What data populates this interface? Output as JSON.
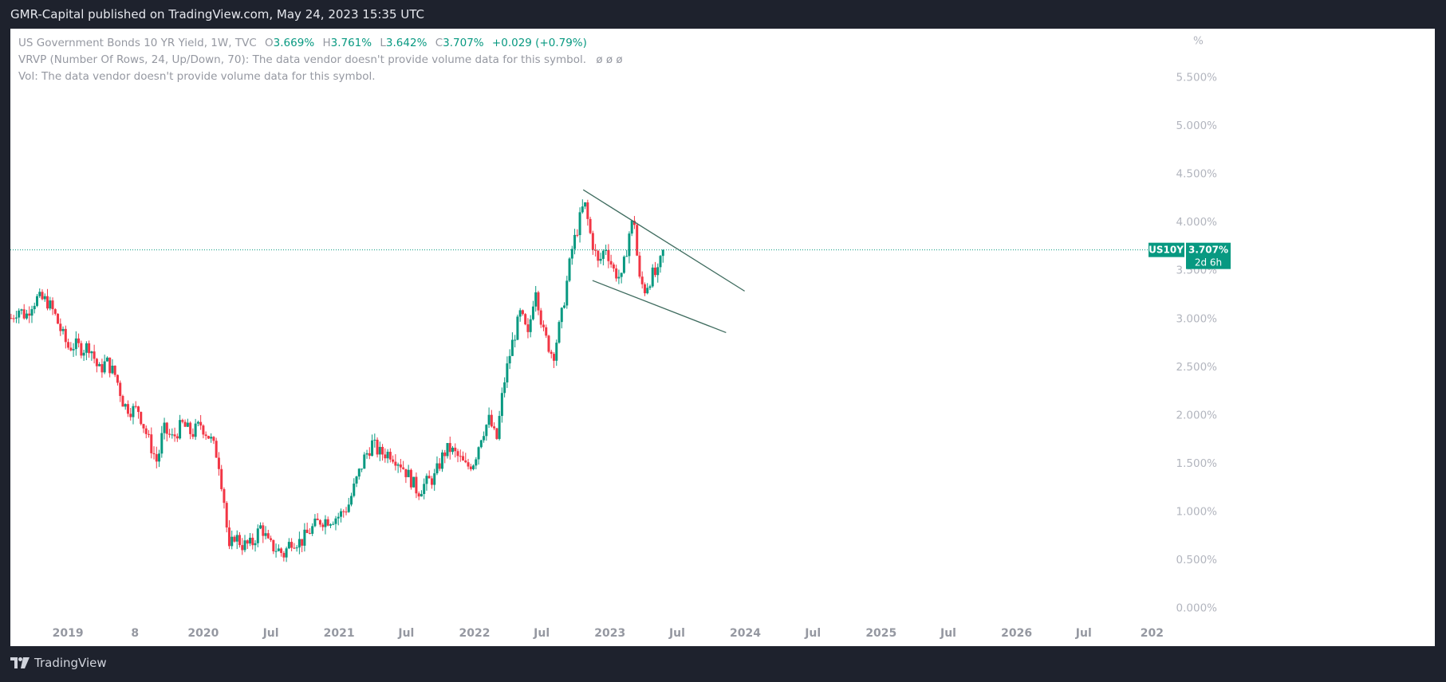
{
  "header": {
    "published": "GMR-Capital published on TradingView.com, May 24, 2023 15:35 UTC"
  },
  "legend": {
    "symbol": "US Government Bonds 10 YR Yield, 1W, TVC",
    "o_label": "O",
    "o_value": "3.669%",
    "h_label": "H",
    "h_value": "3.761%",
    "l_label": "L",
    "l_value": "3.642%",
    "c_label": "C",
    "c_value": "3.707%",
    "change": "+0.029 (+0.79%)",
    "vrvp": "VRVP (Number Of Rows, 24, Up/Down, 70): The data vendor doesn't provide volume data for this symbol.",
    "vrvp_extra": "ø  ø  ø",
    "vol": "Vol: The data vendor doesn't provide volume data for this symbol."
  },
  "badge": {
    "symbol": "US10Y",
    "price": "3.707%",
    "countdown": "2d 6h"
  },
  "footer": {
    "brand": "TradingView"
  },
  "colors": {
    "up": "#089981",
    "down": "#f23645",
    "trendline": "#3e6b5e",
    "price_line": "#089981",
    "background": "#ffffff",
    "frame": "#1e222d"
  },
  "chart_data": {
    "type": "candlestick",
    "unit": "%",
    "y_ticks": [
      "0.000%",
      "0.500%",
      "1.000%",
      "1.500%",
      "2.000%",
      "2.500%",
      "3.000%",
      "3.500%",
      "4.000%",
      "4.500%",
      "5.000%",
      "5.500%"
    ],
    "y_unit_label": "%",
    "ylim": [
      -0.4,
      6.0
    ],
    "x_ticks": [
      {
        "label": "2019",
        "x": "2019-01-01"
      },
      {
        "label": "8",
        "x": "2019-07-01"
      },
      {
        "label": "2020",
        "x": "2020-01-01"
      },
      {
        "label": "Jul",
        "x": "2020-07-01"
      },
      {
        "label": "2021",
        "x": "2021-01-01"
      },
      {
        "label": "Jul",
        "x": "2021-07-01"
      },
      {
        "label": "2022",
        "x": "2022-01-01"
      },
      {
        "label": "Jul",
        "x": "2022-07-01"
      },
      {
        "label": "2023",
        "x": "2023-01-01"
      },
      {
        "label": "Jul",
        "x": "2023-07-01"
      },
      {
        "label": "2024",
        "x": "2024-01-01"
      },
      {
        "label": "Jul",
        "x": "2024-07-01"
      },
      {
        "label": "2025",
        "x": "2025-01-01"
      },
      {
        "label": "Jul",
        "x": "2025-07-01"
      },
      {
        "label": "2026",
        "x": "2026-01-01"
      },
      {
        "label": "Jul",
        "x": "2026-07-01"
      },
      {
        "label": "202",
        "x": "2027-01-01"
      }
    ],
    "xlim": [
      "2018-07-30",
      "2027-02-10"
    ],
    "last_price": 3.707,
    "price_series": [
      [
        "2018-08-01",
        3.0
      ],
      [
        "2018-08-20",
        3.1
      ],
      [
        "2018-09-10",
        3.02
      ],
      [
        "2018-09-25",
        3.15
      ],
      [
        "2018-10-10",
        3.2
      ],
      [
        "2018-11-05",
        3.18
      ],
      [
        "2018-11-25",
        3.05
      ],
      [
        "2018-12-15",
        2.85
      ],
      [
        "2019-01-01",
        2.7
      ],
      [
        "2019-01-20",
        2.72
      ],
      [
        "2019-02-10",
        2.68
      ],
      [
        "2019-03-01",
        2.72
      ],
      [
        "2019-03-25",
        2.45
      ],
      [
        "2019-04-15",
        2.55
      ],
      [
        "2019-05-10",
        2.4
      ],
      [
        "2019-06-01",
        2.1
      ],
      [
        "2019-06-20",
        2.05
      ],
      [
        "2019-07-10",
        2.05
      ],
      [
        "2019-08-05",
        1.75
      ],
      [
        "2019-08-30",
        1.5
      ],
      [
        "2019-09-15",
        1.85
      ],
      [
        "2019-10-10",
        1.75
      ],
      [
        "2019-11-05",
        1.9
      ],
      [
        "2019-12-01",
        1.8
      ],
      [
        "2019-12-25",
        1.9
      ],
      [
        "2020-01-20",
        1.75
      ],
      [
        "2020-02-10",
        1.55
      ],
      [
        "2020-03-01",
        1.0
      ],
      [
        "2020-03-09",
        0.55
      ],
      [
        "2020-03-25",
        0.75
      ],
      [
        "2020-04-15",
        0.65
      ],
      [
        "2020-05-10",
        0.65
      ],
      [
        "2020-06-05",
        0.85
      ],
      [
        "2020-06-25",
        0.65
      ],
      [
        "2020-07-20",
        0.6
      ],
      [
        "2020-08-05",
        0.55
      ],
      [
        "2020-08-25",
        0.7
      ],
      [
        "2020-09-20",
        0.68
      ],
      [
        "2020-10-15",
        0.8
      ],
      [
        "2020-11-10",
        0.9
      ],
      [
        "2020-12-10",
        0.92
      ],
      [
        "2021-01-01",
        0.95
      ],
      [
        "2021-01-25",
        1.05
      ],
      [
        "2021-02-15",
        1.3
      ],
      [
        "2021-03-10",
        1.55
      ],
      [
        "2021-03-31",
        1.7
      ],
      [
        "2021-04-20",
        1.6
      ],
      [
        "2021-05-20",
        1.6
      ],
      [
        "2021-06-15",
        1.5
      ],
      [
        "2021-07-10",
        1.35
      ],
      [
        "2021-08-01",
        1.2
      ],
      [
        "2021-08-20",
        1.28
      ],
      [
        "2021-09-15",
        1.35
      ],
      [
        "2021-10-10",
        1.6
      ],
      [
        "2021-10-25",
        1.65
      ],
      [
        "2021-11-20",
        1.55
      ],
      [
        "2021-12-10",
        1.45
      ],
      [
        "2021-12-31",
        1.52
      ],
      [
        "2022-01-20",
        1.8
      ],
      [
        "2022-02-10",
        1.95
      ],
      [
        "2022-03-01",
        1.72
      ],
      [
        "2022-03-20",
        2.3
      ],
      [
        "2022-04-10",
        2.7
      ],
      [
        "2022-05-05",
        3.05
      ],
      [
        "2022-05-25",
        2.8
      ],
      [
        "2022-06-14",
        3.35
      ],
      [
        "2022-07-05",
        2.85
      ],
      [
        "2022-08-01",
        2.6
      ],
      [
        "2022-08-25",
        3.05
      ],
      [
        "2022-09-20",
        3.7
      ],
      [
        "2022-10-10",
        4.0
      ],
      [
        "2022-10-24",
        4.2
      ],
      [
        "2022-11-10",
        3.85
      ],
      [
        "2022-12-01",
        3.55
      ],
      [
        "2022-12-20",
        3.75
      ],
      [
        "2023-01-10",
        3.5
      ],
      [
        "2023-02-01",
        3.4
      ],
      [
        "2023-02-25",
        3.95
      ],
      [
        "2023-03-08",
        4.0
      ],
      [
        "2023-03-20",
        3.4
      ],
      [
        "2023-04-05",
        3.3
      ],
      [
        "2023-04-25",
        3.45
      ],
      [
        "2023-05-10",
        3.45
      ],
      [
        "2023-05-24",
        3.707
      ]
    ],
    "trendlines": [
      {
        "x1": "2022-10-21",
        "y1": 4.33,
        "x2": "2023-12-30",
        "y2": 3.28
      },
      {
        "x1": "2022-11-15",
        "y1": 3.39,
        "x2": "2023-11-10",
        "y2": 2.85
      }
    ]
  }
}
